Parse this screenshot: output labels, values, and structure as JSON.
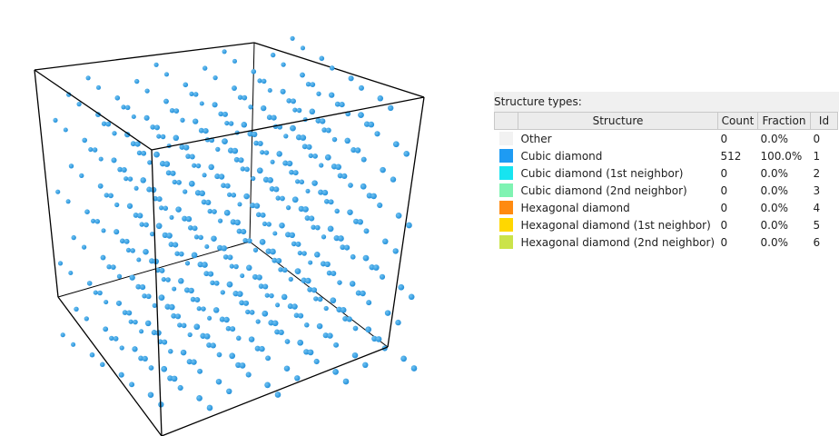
{
  "panel": {
    "title": "Structure types:",
    "columns": [
      "",
      "Structure",
      "Count",
      "Fraction",
      "Id"
    ],
    "rows": [
      {
        "color": "#f2f2f2",
        "name": "Other",
        "count": "0",
        "fraction": "0.0%",
        "id": "0"
      },
      {
        "color": "#1e9bf3",
        "name": "Cubic diamond",
        "count": "512",
        "fraction": "100.0%",
        "id": "1"
      },
      {
        "color": "#17e4f0",
        "name": "Cubic diamond (1st neighbor)",
        "count": "0",
        "fraction": "0.0%",
        "id": "2"
      },
      {
        "color": "#7ff3b2",
        "name": "Cubic diamond (2nd neighbor)",
        "count": "0",
        "fraction": "0.0%",
        "id": "3"
      },
      {
        "color": "#ff8a10",
        "name": "Hexagonal diamond",
        "count": "0",
        "fraction": "0.0%",
        "id": "4"
      },
      {
        "color": "#ffd700",
        "name": "Hexagonal diamond (1st neighbor)",
        "count": "0",
        "fraction": "0.0%",
        "id": "5"
      },
      {
        "color": "#cbe34a",
        "name": "Hexagonal diamond (2nd neighbor)",
        "count": "0",
        "fraction": "0.0%",
        "id": "6"
      }
    ]
  },
  "viewport": {
    "atom_color": "#1f8dd8",
    "atom_highlight": "#6fc2f2",
    "cell_line_color": "#000000"
  }
}
